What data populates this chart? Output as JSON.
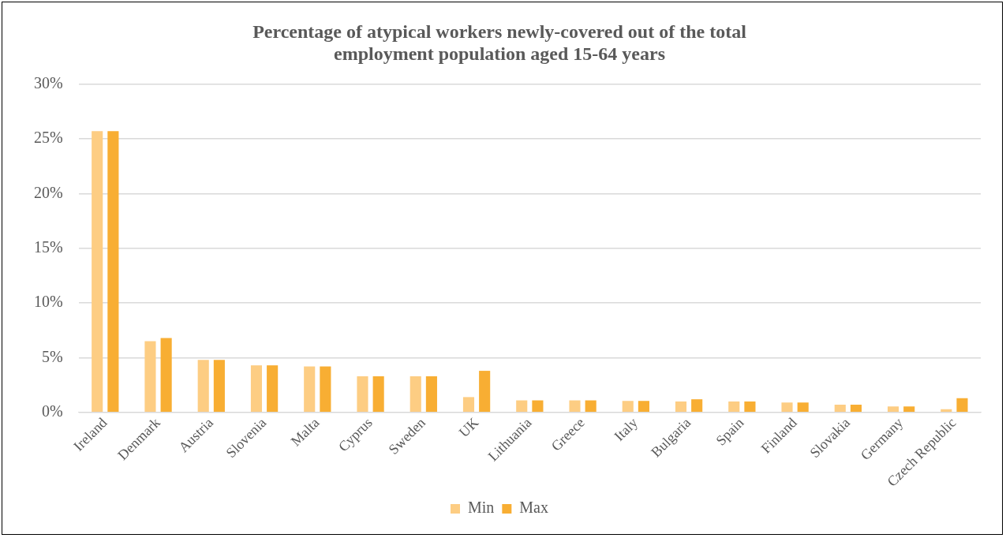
{
  "chart_data": {
    "type": "bar",
    "title": "Percentage of atypical workers newly-covered out of the total employment population aged 15-64 years",
    "categories": [
      "Ireland",
      "Denmark",
      "Austria",
      "Slovenia",
      "Malta",
      "Cyprus",
      "Sweden",
      "UK",
      "Lithuania",
      "Greece",
      "Italy",
      "Bulgaria",
      "Spain",
      "Finland",
      "Slovakia",
      "Germany",
      "Czech Republic"
    ],
    "series": [
      {
        "name": "Min",
        "color": "#fdcd83",
        "values": [
          25.7,
          6.5,
          4.8,
          4.3,
          4.2,
          3.3,
          3.3,
          1.4,
          1.1,
          1.1,
          1.05,
          1.0,
          1.0,
          0.9,
          0.7,
          0.55,
          0.3
        ]
      },
      {
        "name": "Max",
        "color": "#f8ae33",
        "values": [
          25.7,
          6.8,
          4.8,
          4.3,
          4.2,
          3.3,
          3.3,
          3.8,
          1.1,
          1.1,
          1.05,
          1.2,
          1.0,
          0.9,
          0.7,
          0.55,
          1.3
        ]
      }
    ],
    "ylim": [
      0,
      30
    ],
    "yticks": [
      {
        "value": 0,
        "label": "0%"
      },
      {
        "value": 5,
        "label": "5%"
      },
      {
        "value": 10,
        "label": "10%"
      },
      {
        "value": 15,
        "label": "15%"
      },
      {
        "value": 20,
        "label": "20%"
      },
      {
        "value": 25,
        "label": "25%"
      },
      {
        "value": 30,
        "label": "30%"
      }
    ],
    "grid": "y",
    "legend": "bottom"
  }
}
